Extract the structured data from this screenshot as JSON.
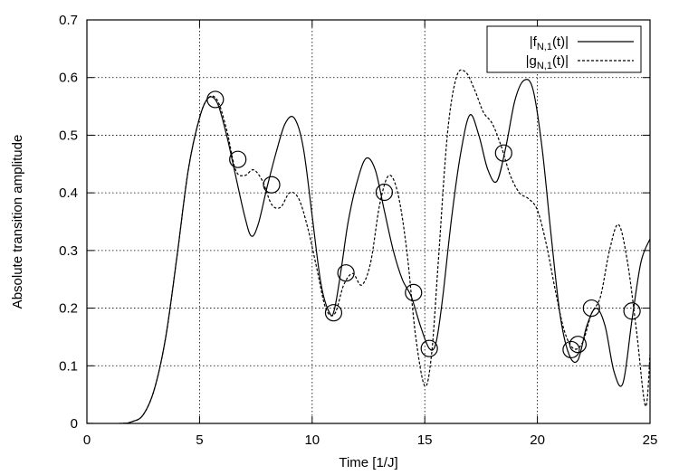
{
  "chart_data": {
    "type": "line",
    "title": "",
    "xlabel": "Time [1/J]",
    "ylabel": "Absolute transition amplitude",
    "xlim": [
      0,
      25
    ],
    "ylim": [
      0,
      0.7
    ],
    "xticks": [
      0,
      5,
      10,
      15,
      20,
      25
    ],
    "yticks": [
      0,
      0.1,
      0.2,
      0.3,
      0.4,
      0.5,
      0.6,
      0.7
    ],
    "xtick_labels": [
      "0",
      "5",
      "10",
      "15",
      "20",
      "25"
    ],
    "ytick_labels": [
      "0",
      "0.1",
      "0.2",
      "0.3",
      "0.4",
      "0.5",
      "0.6",
      "0.7"
    ],
    "grid": true,
    "legend_position": "top-right",
    "series": [
      {
        "name": "|f_{N,1}(t)|",
        "legend_main": "|f",
        "legend_sub": "N,1",
        "legend_tail": "(t)|",
        "style": "solid",
        "x": [
          0,
          1.5,
          2.0,
          2.5,
          3.0,
          3.5,
          4.0,
          4.5,
          5.0,
          5.4,
          5.8,
          6.2,
          6.6,
          7.0,
          7.3,
          7.6,
          8.0,
          8.4,
          8.8,
          9.2,
          9.6,
          10.0,
          10.4,
          10.8,
          11.0,
          11.3,
          11.6,
          12.0,
          12.4,
          12.8,
          13.2,
          13.6,
          14.0,
          14.4,
          14.8,
          15.2,
          15.5,
          15.8,
          16.2,
          16.6,
          17.0,
          17.4,
          17.8,
          18.2,
          18.6,
          19.0,
          19.4,
          19.8,
          20.2,
          20.6,
          21.0,
          21.4,
          21.8,
          22.2,
          22.6,
          23.0,
          23.4,
          23.8,
          24.2,
          24.6,
          25.0
        ],
        "y": [
          0,
          0.0,
          0.003,
          0.015,
          0.06,
          0.15,
          0.29,
          0.44,
          0.53,
          0.565,
          0.555,
          0.5,
          0.43,
          0.36,
          0.325,
          0.345,
          0.41,
          0.47,
          0.52,
          0.53,
          0.48,
          0.36,
          0.24,
          0.19,
          0.2,
          0.27,
          0.35,
          0.42,
          0.46,
          0.44,
          0.37,
          0.3,
          0.25,
          0.22,
          0.17,
          0.13,
          0.14,
          0.22,
          0.36,
          0.47,
          0.535,
          0.5,
          0.44,
          0.42,
          0.48,
          0.56,
          0.595,
          0.58,
          0.48,
          0.33,
          0.19,
          0.12,
          0.11,
          0.17,
          0.2,
          0.17,
          0.09,
          0.07,
          0.18,
          0.28,
          0.32
        ]
      },
      {
        "name": "|g_{N,1}(t)|",
        "legend_main": "|g",
        "legend_sub": "N,1",
        "legend_tail": "(t)|",
        "style": "dashed",
        "x": [
          0,
          1.5,
          2.0,
          2.5,
          3.0,
          3.5,
          4.0,
          4.5,
          5.0,
          5.4,
          5.8,
          6.2,
          6.6,
          7.0,
          7.4,
          7.8,
          8.2,
          8.6,
          9.0,
          9.4,
          9.8,
          10.2,
          10.6,
          11.0,
          11.4,
          11.8,
          12.2,
          12.6,
          13.0,
          13.4,
          13.8,
          14.2,
          14.6,
          15.0,
          15.3,
          15.6,
          16.0,
          16.4,
          16.8,
          17.2,
          17.6,
          18.0,
          18.4,
          18.8,
          19.2,
          19.6,
          20.0,
          20.4,
          20.8,
          21.2,
          21.6,
          22.0,
          22.4,
          22.8,
          23.2,
          23.6,
          24.0,
          24.4,
          24.8,
          25.0
        ],
        "y": [
          0,
          0.0,
          0.003,
          0.015,
          0.06,
          0.15,
          0.29,
          0.44,
          0.53,
          0.565,
          0.56,
          0.51,
          0.44,
          0.43,
          0.44,
          0.42,
          0.38,
          0.375,
          0.4,
          0.39,
          0.34,
          0.27,
          0.2,
          0.19,
          0.24,
          0.26,
          0.24,
          0.28,
          0.38,
          0.43,
          0.4,
          0.3,
          0.15,
          0.065,
          0.12,
          0.28,
          0.5,
          0.6,
          0.61,
          0.58,
          0.54,
          0.52,
          0.48,
          0.43,
          0.4,
          0.39,
          0.37,
          0.31,
          0.23,
          0.16,
          0.13,
          0.14,
          0.19,
          0.22,
          0.3,
          0.345,
          0.28,
          0.16,
          0.03,
          0.12
        ]
      }
    ],
    "markers": {
      "shape": "open-circle",
      "points": [
        {
          "x": 5.7,
          "y": 0.562
        },
        {
          "x": 6.7,
          "y": 0.458
        },
        {
          "x": 8.2,
          "y": 0.414
        },
        {
          "x": 10.95,
          "y": 0.192
        },
        {
          "x": 11.5,
          "y": 0.261
        },
        {
          "x": 13.2,
          "y": 0.401
        },
        {
          "x": 14.5,
          "y": 0.227
        },
        {
          "x": 15.2,
          "y": 0.13
        },
        {
          "x": 18.5,
          "y": 0.469
        },
        {
          "x": 21.5,
          "y": 0.128
        },
        {
          "x": 21.8,
          "y": 0.137
        },
        {
          "x": 22.4,
          "y": 0.2
        },
        {
          "x": 24.2,
          "y": 0.195
        }
      ]
    }
  }
}
